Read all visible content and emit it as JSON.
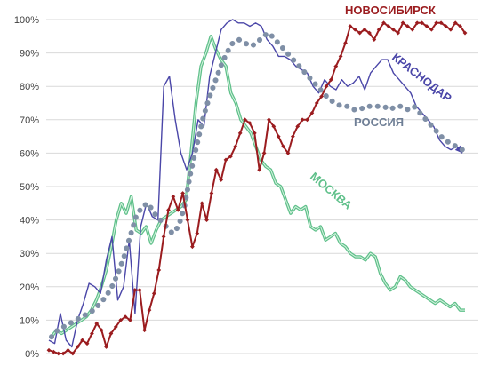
{
  "chart_data": {
    "type": "line",
    "title": "",
    "xlabel": "",
    "ylabel": "",
    "ylim": [
      0,
      100
    ],
    "y_ticks": [
      "0%",
      "10%",
      "20%",
      "30%",
      "40%",
      "50%",
      "60%",
      "70%",
      "80%",
      "90%",
      "100%"
    ],
    "grid": true,
    "legend": "inline labels",
    "series": [
      {
        "name": "НОВОСИБИРСК",
        "color": "#9b1c1f",
        "marker": "diamond",
        "values": [
          1,
          0.5,
          0,
          0,
          1,
          0,
          2,
          4,
          3,
          6,
          9,
          7,
          2,
          6,
          8,
          10,
          11,
          10,
          19,
          19,
          7,
          13,
          18,
          25,
          35,
          43,
          47,
          43,
          48,
          40,
          32,
          36,
          45,
          40,
          48,
          55,
          52,
          58,
          59,
          62,
          66,
          70,
          69,
          66,
          55,
          60,
          70,
          68,
          65,
          62,
          60,
          65,
          68,
          70,
          70,
          72,
          75,
          77,
          80,
          82,
          86,
          89,
          93,
          98,
          97,
          96,
          97,
          96,
          94,
          97,
          99,
          98,
          97,
          96,
          99,
          98,
          97,
          99,
          99,
          98,
          97,
          99,
          99,
          98,
          97,
          99,
          98,
          96
        ]
      },
      {
        "name": "КРАСНОДАР",
        "color": "#4a46a8",
        "values": [
          4,
          3,
          12,
          4,
          2,
          10,
          15,
          21,
          20,
          18,
          28,
          35,
          16,
          20,
          34,
          12,
          38,
          45,
          41,
          40,
          80,
          83,
          70,
          60,
          55,
          60,
          70,
          68,
          83,
          90,
          97,
          99,
          100,
          99,
          99,
          98,
          99,
          98,
          94,
          92,
          89,
          89,
          88,
          86,
          85,
          84,
          80,
          78,
          82,
          80,
          79,
          82,
          80,
          81,
          83,
          79,
          84,
          86,
          88,
          88,
          84,
          82,
          80,
          78,
          74,
          72,
          70,
          68,
          64,
          62,
          61,
          62,
          60
        ]
      },
      {
        "name": "РОССИЯ",
        "color": "#7f8fa6",
        "marker": "dot",
        "values": [
          5,
          7,
          8,
          9,
          10,
          11,
          12,
          13,
          15,
          17,
          20,
          24,
          29,
          35,
          41,
          44,
          45,
          42,
          40,
          38,
          36,
          38,
          44,
          54,
          62,
          70,
          76,
          81,
          86,
          90,
          93,
          94,
          93,
          92,
          93,
          95,
          96,
          94,
          92,
          90,
          88,
          86,
          84,
          82,
          80,
          78,
          76,
          75,
          74,
          74,
          73,
          73,
          74,
          74,
          74,
          74,
          73,
          74,
          74,
          73,
          74,
          72,
          70,
          68,
          66,
          64,
          63,
          62,
          61
        ]
      },
      {
        "name": "МОСКВА",
        "color": "#5fc08a",
        "values": [
          5,
          7,
          6,
          7,
          8,
          9,
          10,
          11,
          13,
          16,
          20,
          25,
          32,
          40,
          45,
          42,
          47,
          37,
          36,
          38,
          33,
          37,
          40,
          41,
          42,
          43,
          44,
          46,
          60,
          75,
          86,
          90,
          95,
          91,
          88,
          86,
          78,
          75,
          70,
          68,
          66,
          62,
          58,
          56,
          55,
          51,
          50,
          46,
          42,
          44,
          43,
          44,
          38,
          37,
          38,
          34,
          35,
          36,
          33,
          32,
          30,
          29,
          29,
          28,
          30,
          29,
          24,
          21,
          19,
          20,
          23,
          22,
          20,
          19,
          18,
          17,
          16,
          15,
          16,
          15,
          14,
          15,
          13,
          13
        ]
      }
    ],
    "annotations": [
      {
        "text": "НОВОСИБИРСК",
        "series": 0
      },
      {
        "text": "КРАСНОДАР",
        "series": 1
      },
      {
        "text": "РОССИЯ",
        "series": 2
      },
      {
        "text": "МОСКВА",
        "series": 3
      }
    ]
  }
}
